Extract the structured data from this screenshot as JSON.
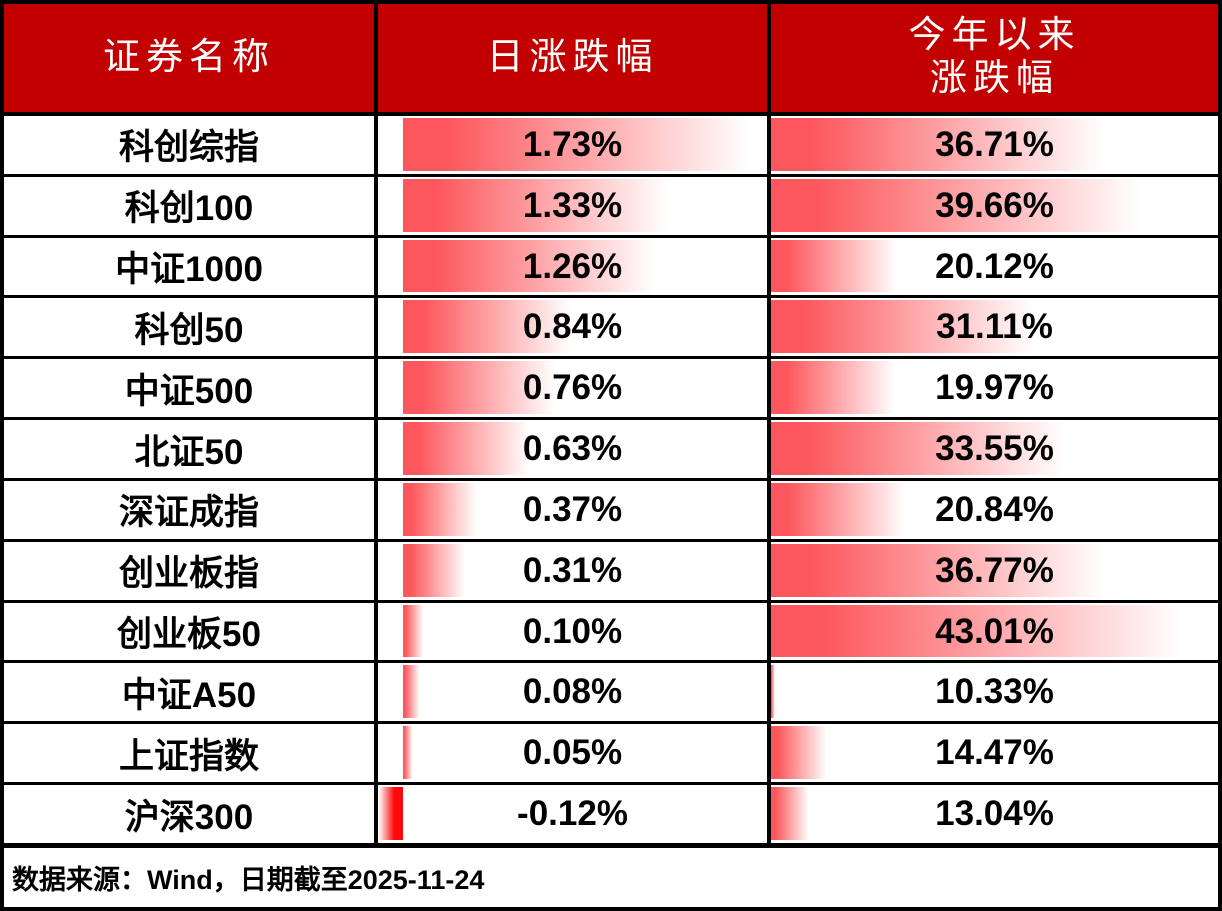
{
  "table": {
    "headers": {
      "name": "证券名称",
      "daily": "日涨跌幅",
      "ytd_line1": "今年以来",
      "ytd_line2": "涨跌幅"
    },
    "rows": [
      {
        "name": "科创综指",
        "daily": "1.73%",
        "ytd": "36.71%"
      },
      {
        "name": "科创100",
        "daily": "1.33%",
        "ytd": "39.66%"
      },
      {
        "name": "中证1000",
        "daily": "1.26%",
        "ytd": "20.12%"
      },
      {
        "name": "科创50",
        "daily": "0.84%",
        "ytd": "31.11%"
      },
      {
        "name": "中证500",
        "daily": "0.76%",
        "ytd": "19.97%"
      },
      {
        "name": "北证50",
        "daily": "0.63%",
        "ytd": "33.55%"
      },
      {
        "name": "深证成指",
        "daily": "0.37%",
        "ytd": "20.84%"
      },
      {
        "name": "创业板指",
        "daily": "0.31%",
        "ytd": "36.77%"
      },
      {
        "name": "创业板50",
        "daily": "0.10%",
        "ytd": "43.01%"
      },
      {
        "name": "中证A50",
        "daily": "0.08%",
        "ytd": "10.33%"
      },
      {
        "name": "上证指数",
        "daily": "0.05%",
        "ytd": "14.47%"
      },
      {
        "name": "沪深300",
        "daily": "-0.12%",
        "ytd": "13.04%"
      }
    ],
    "footer": "数据来源：Wind，日期截至2025-11-24"
  },
  "colors": {
    "header_bg": "#c30000",
    "header_text": "#ffffff",
    "bar_positive": "#fc575c",
    "bar_negative": "#fa0a0a",
    "border": "#000000",
    "text": "#000000"
  },
  "chart_data": {
    "type": "table",
    "title": "",
    "columns": [
      "证券名称",
      "日涨跌幅",
      "今年以来涨跌幅"
    ],
    "rows": [
      [
        "科创综指",
        1.73,
        36.71
      ],
      [
        "科创100",
        1.33,
        39.66
      ],
      [
        "中证1000",
        1.26,
        20.12
      ],
      [
        "科创50",
        0.84,
        31.11
      ],
      [
        "中证500",
        0.76,
        19.97
      ],
      [
        "北证50",
        0.63,
        33.55
      ],
      [
        "深证成指",
        0.37,
        20.84
      ],
      [
        "创业板指",
        0.31,
        36.77
      ],
      [
        "创业板50",
        0.1,
        43.01
      ],
      [
        "中证A50",
        0.08,
        10.33
      ],
      [
        "上证指数",
        0.05,
        14.47
      ],
      [
        "沪深300",
        -0.12,
        13.04
      ]
    ],
    "databars": {
      "daily": {
        "min": -0.12,
        "max": 1.73,
        "axis": "automatic",
        "style": "gradient-red"
      },
      "ytd": {
        "min": 10.33,
        "max": 43.01,
        "axis": "left",
        "style": "gradient-red"
      }
    },
    "source_note": "数据来源：Wind，日期截至2025-11-24"
  }
}
